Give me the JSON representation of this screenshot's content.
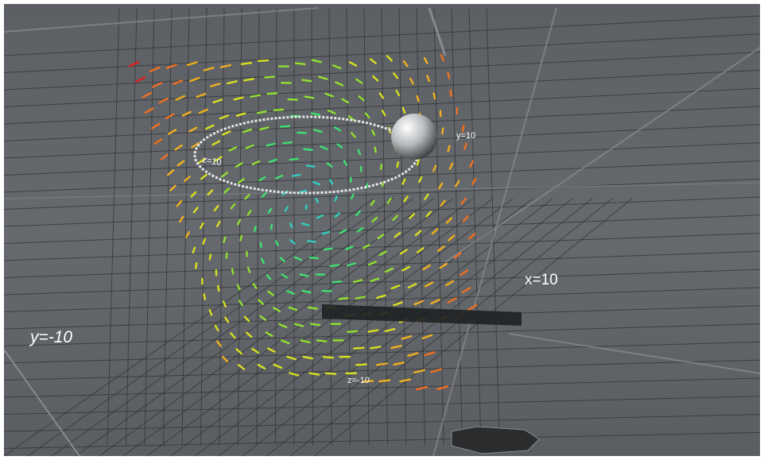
{
  "labels": {
    "y_top": "y=10",
    "x_right": "x=10",
    "y_left": "y=-10",
    "z_bottom": "z=-10",
    "z_ring": "z=10"
  }
}
